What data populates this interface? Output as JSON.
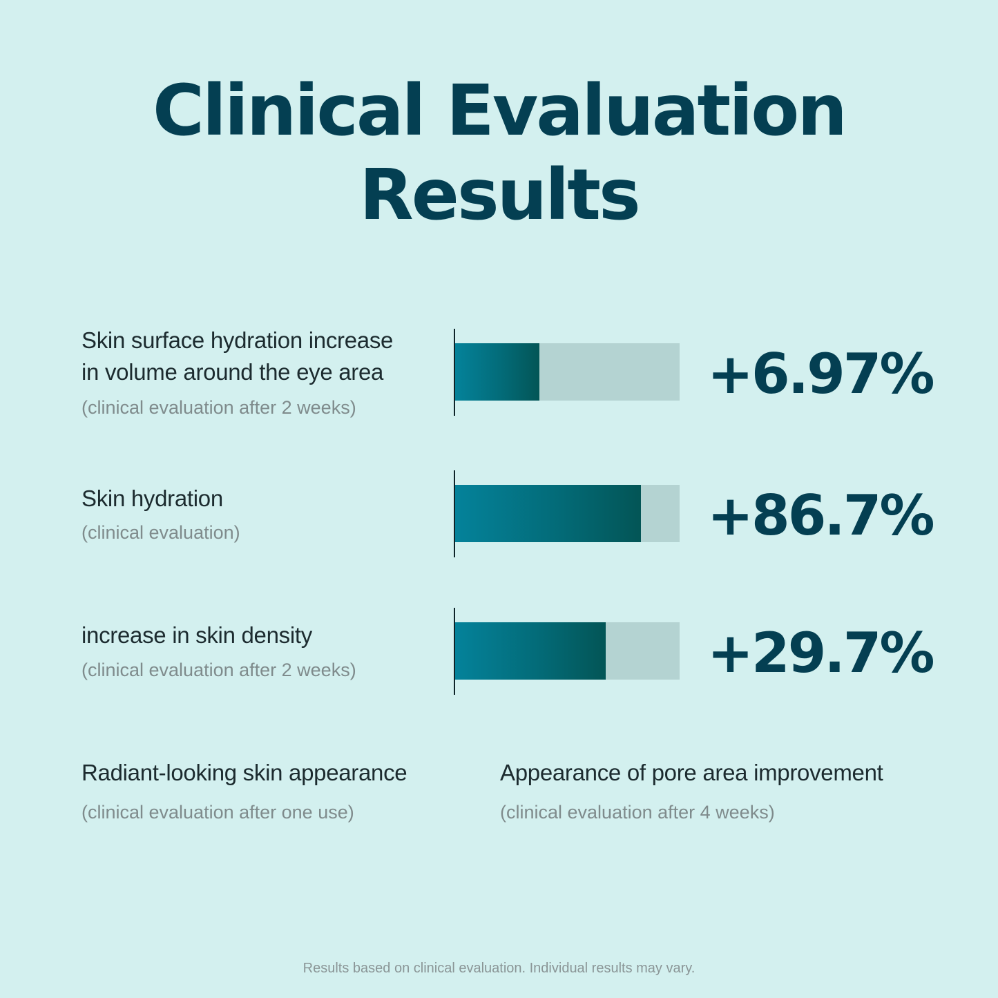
{
  "title": {
    "line1": "Clinical Evaluation",
    "line2": "Results"
  },
  "chart_data": {
    "type": "bar",
    "orientation": "horizontal",
    "categories": [
      "Skin surface hydration increase in volume around the eye area",
      "Skin hydration",
      "increase in skin density"
    ],
    "notes": [
      "(clinical evaluation after 2 weeks)",
      "(clinical evaluation)",
      "(clinical evaluation after 2 weeks)"
    ],
    "values": [
      6.97,
      86.7,
      29.7
    ],
    "value_labels": [
      "+6.97%",
      "+86.7%",
      "+29.7%"
    ],
    "colors": {
      "bar_fill_start": "#04829a",
      "bar_fill_end": "#035556",
      "bar_track": "#b4d3d2",
      "value_text": "#043f52"
    }
  },
  "metrics": [
    {
      "label_line1": "Skin surface hydration increase",
      "label_line2": "in volume around the eye area",
      "note": "(clinical evaluation after 2 weeks)",
      "value_label": "+6.97%",
      "fill_fraction": 0.375
    },
    {
      "label_line1": "Skin hydration",
      "label_line2": "",
      "note": "(clinical evaluation)",
      "value_label": "+86.7%",
      "fill_fraction": 0.827
    },
    {
      "label_line1": "increase in skin density",
      "label_line2": "",
      "note": "(clinical evaluation after 2 weeks)",
      "value_label": "+29.7%",
      "fill_fraction": 0.67
    }
  ],
  "extras": [
    {
      "label": "Radiant-looking skin appearance",
      "note": "(clinical evaluation after one use)"
    },
    {
      "label": "Appearance of pore area improvement",
      "note": "(clinical evaluation after 4 weeks)"
    }
  ],
  "footer": "Results based on clinical evaluation. Individual results may vary."
}
